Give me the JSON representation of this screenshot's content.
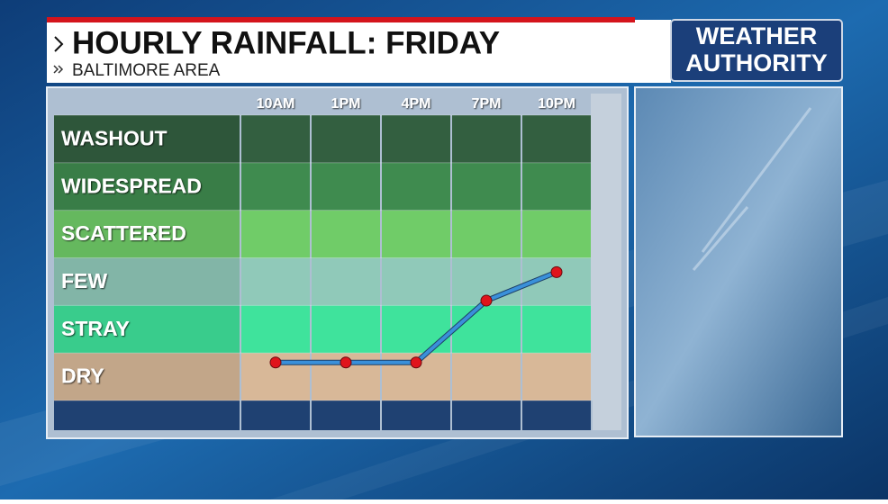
{
  "chart_data": {
    "type": "line",
    "title": "HOURLY RAINFALL: FRIDAY",
    "subtitle": "BALTIMORE AREA",
    "logo": [
      "WEATHER",
      "AUTHORITY"
    ],
    "categories": [
      "10AM",
      "1PM",
      "4PM",
      "7PM",
      "10PM"
    ],
    "bands": [
      {
        "name": "DRY",
        "color": "#d8b898"
      },
      {
        "name": "STRAY",
        "color": "#3fe39c"
      },
      {
        "name": "FEW",
        "color": "#90c9b9"
      },
      {
        "name": "SCATTERED",
        "color": "#70cc68"
      },
      {
        "name": "WIDESPREAD",
        "color": "#3f8b4f"
      },
      {
        "name": "WASHOUT",
        "color": "#335f40"
      }
    ],
    "ylim": [
      0,
      6
    ],
    "yticks": [
      0,
      1,
      2,
      3,
      4,
      5,
      6
    ],
    "series": [
      {
        "color": "#3a90da",
        "marker_color": "#e0141c",
        "values": [
          0.8,
          0.8,
          0.8,
          2.1,
          2.7
        ]
      }
    ]
  }
}
